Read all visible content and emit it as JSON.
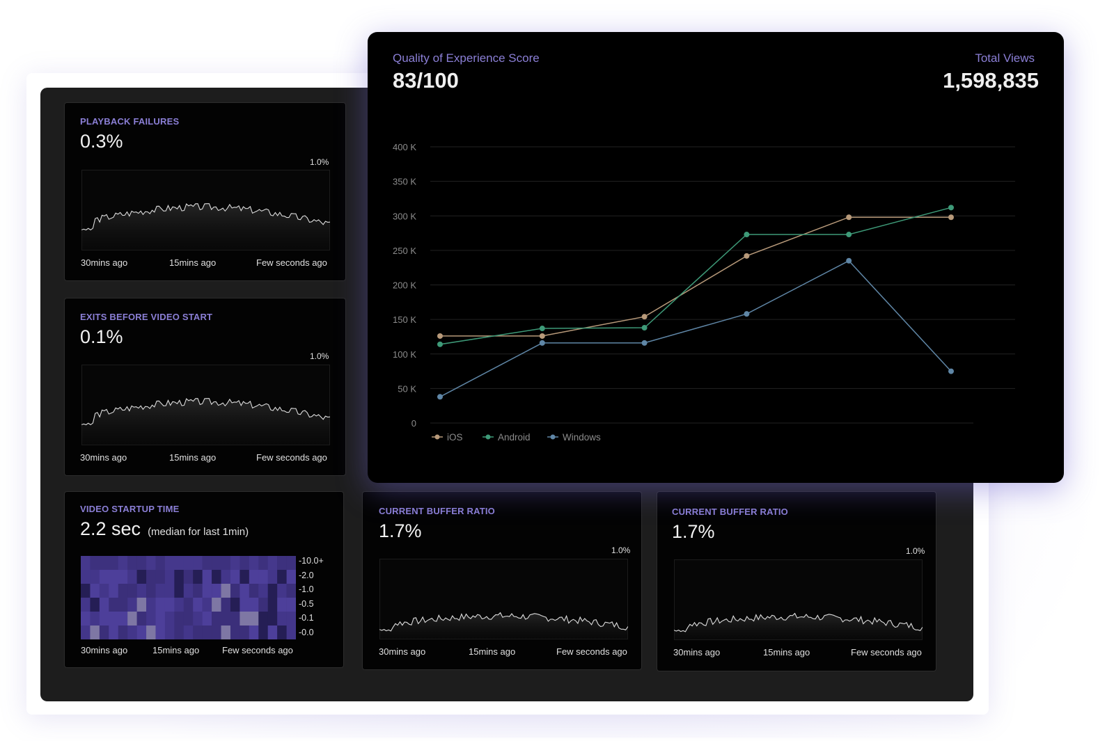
{
  "colors": {
    "accent": "#8b7fd6",
    "ios": "#b89a7a",
    "android": "#3e9a78",
    "windows": "#5f86a6"
  },
  "playback_failures": {
    "title": "PLAYBACK FAILURES",
    "value": "0.3%",
    "max": "1.0%",
    "x_labels": [
      "30mins ago",
      "15mins ago",
      "Few seconds ago"
    ]
  },
  "exits_before_start": {
    "title": "EXITS BEFORE VIDEO START",
    "value": "0.1%",
    "max": "1.0%",
    "x_labels": [
      "30mins ago",
      "15mins ago",
      "Few seconds ago"
    ]
  },
  "video_startup": {
    "title": "VIDEO STARTUP TIME",
    "value": "2.2 sec",
    "note": "(median for last 1min)",
    "legend": [
      "-10.0+",
      "-2.0",
      "-1.0",
      "-0.5",
      "-0.1",
      "-0.0"
    ],
    "x_labels": [
      "30mins ago",
      "15mins ago",
      "Few seconds ago"
    ]
  },
  "buffer_ratio_1": {
    "title": "CURRENT BUFFER  RATIO",
    "value": "1.7%",
    "max": "1.0%",
    "x_labels": [
      "30mins ago",
      "15mins ago",
      "Few seconds ago"
    ]
  },
  "buffer_ratio_2": {
    "title": "CURRENT BUFFER  RATIO",
    "value": "1.7%",
    "max": "1.0%",
    "x_labels": [
      "30mins ago",
      "15mins ago",
      "Few seconds ago"
    ]
  },
  "qoe": {
    "title": "Quality of Experience Score",
    "value": "83/100",
    "total_label": "Total Views",
    "total_value": "1,598,835"
  },
  "chart_data": {
    "type": "line",
    "y_ticks": [
      "400 K",
      "350 K",
      "300 K",
      "250 K",
      "200 K",
      "150 K",
      "100 K",
      "50 K",
      "0"
    ],
    "ylim": [
      0,
      400000
    ],
    "x": [
      0,
      1,
      2,
      3,
      4,
      5
    ],
    "series": [
      {
        "name": "iOS",
        "values": [
          126000,
          126000,
          154000,
          242000,
          298000,
          298000
        ]
      },
      {
        "name": "Android",
        "values": [
          114000,
          137000,
          138000,
          273000,
          273000,
          312000
        ]
      },
      {
        "name": "Windows",
        "values": [
          38000,
          116000,
          116000,
          158000,
          235000,
          75000
        ]
      }
    ],
    "legend_position": "bottom-left",
    "grid": true
  }
}
